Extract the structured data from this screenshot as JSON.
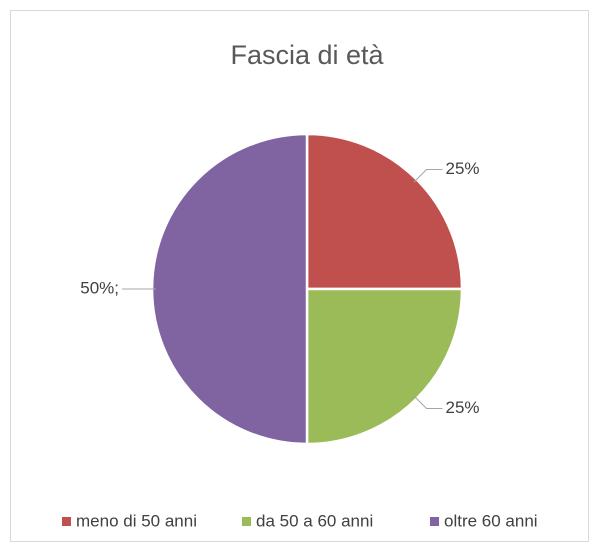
{
  "chart_data": {
    "type": "pie",
    "title": "Fascia di età",
    "categories": [
      "meno di 50 anni",
      "da 50 a 60 anni",
      "oltre 60 anni"
    ],
    "values": [
      25,
      25,
      50
    ],
    "value_labels": [
      "25%",
      "25%",
      "50%;"
    ],
    "colors": [
      "#c0504d",
      "#9bbb59",
      "#8064a2"
    ],
    "legend": "bottom"
  }
}
